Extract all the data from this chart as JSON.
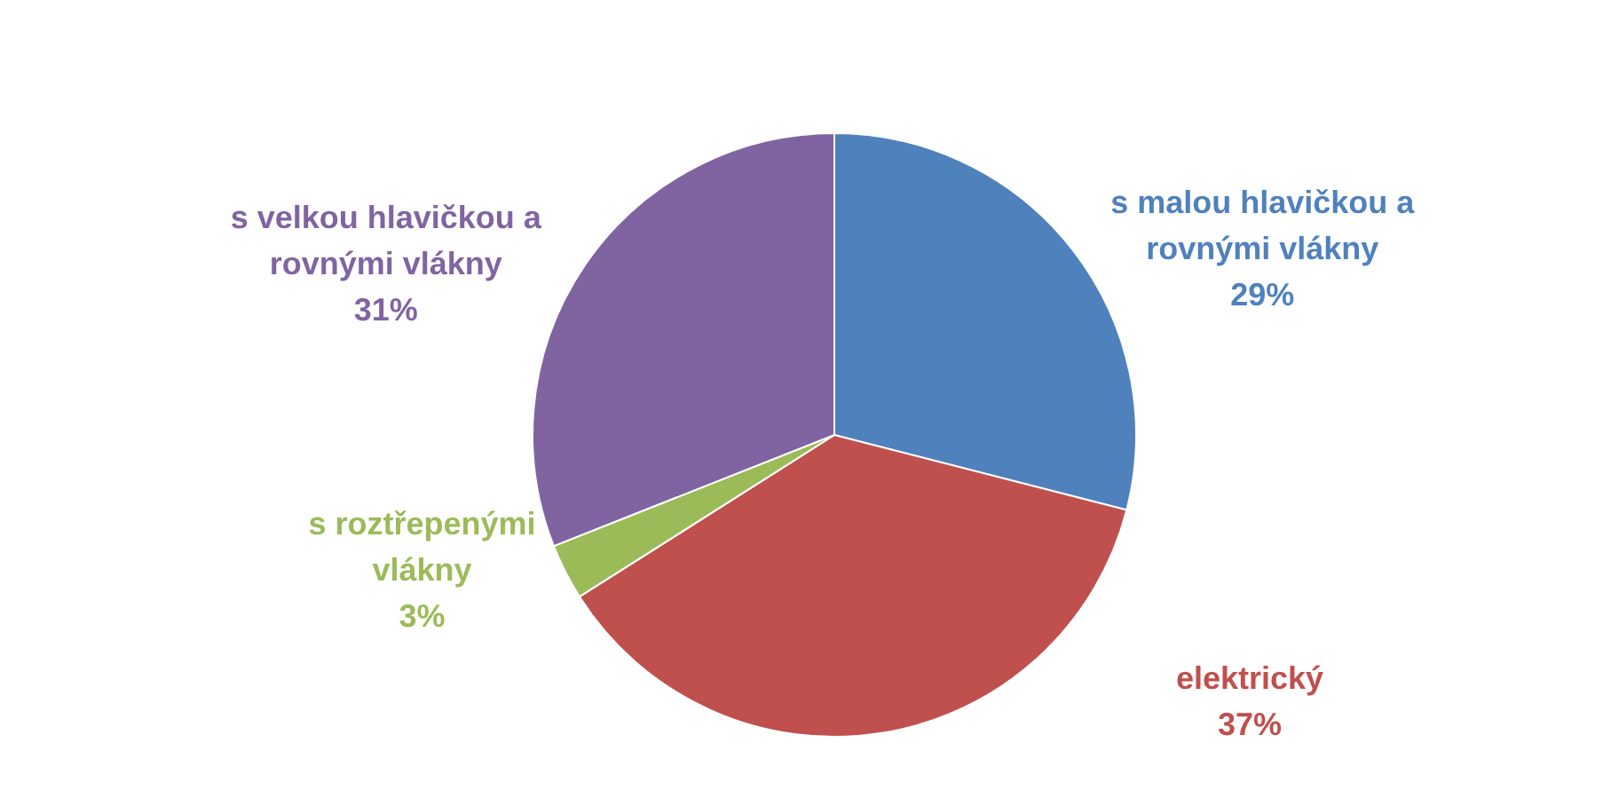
{
  "chart_data": {
    "type": "pie",
    "categories": [
      "s malou hlavičkou a rovnými vlákny",
      "elektrický",
      "s roztřepenými vlákny",
      "s velkou hlavičkou a rovnými vlákny"
    ],
    "values": [
      29,
      37,
      3,
      31
    ],
    "colors": [
      "#4f81bd",
      "#c0504d",
      "#9bbb59",
      "#8064a2"
    ],
    "value_labels": [
      "29%",
      "37%",
      "3%",
      "31%"
    ]
  }
}
